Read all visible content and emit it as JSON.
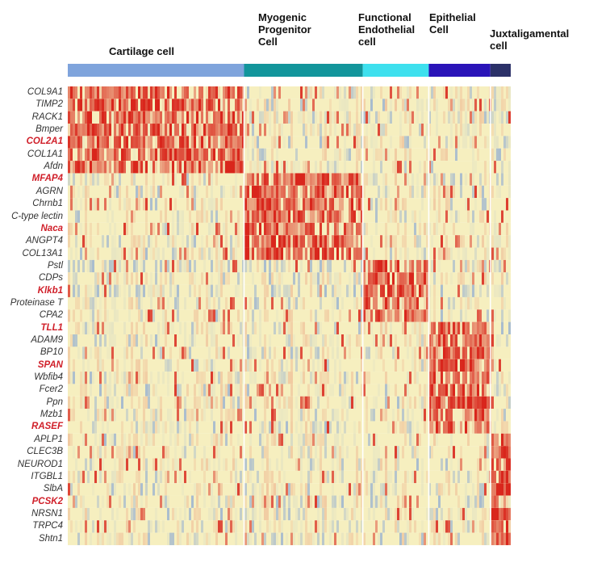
{
  "chart_data": {
    "type": "heatmap",
    "clusters": [
      {
        "name": "Cartilage cell",
        "label": "Cartilage cell",
        "color": "#7fa4dc",
        "share": 0.398
      },
      {
        "name": "Myogenic Progenitor Cell",
        "label": "Myogenic\nProgenitor\nCell",
        "color": "#12959b",
        "share": 0.268
      },
      {
        "name": "Functional Endothelial cell",
        "label": "Functional\nEndothelial\ncell",
        "color": "#3ee0ee",
        "share": 0.149
      },
      {
        "name": "Epithelial Cell",
        "label": "Epithelial\nCell",
        "color": "#2a14b8",
        "share": 0.139
      },
      {
        "name": "Juxtaligamental cell",
        "label": "Juxtaligamental\ncell",
        "color": "#2b3168",
        "share": 0.046
      }
    ],
    "genes": [
      {
        "name": "COL9A1",
        "highlight": false,
        "cluster": 0
      },
      {
        "name": "TIMP2",
        "highlight": false,
        "cluster": 0
      },
      {
        "name": "RACK1",
        "highlight": false,
        "cluster": 0
      },
      {
        "name": "Bmper",
        "highlight": false,
        "cluster": 0
      },
      {
        "name": "COL2A1",
        "highlight": true,
        "cluster": 0
      },
      {
        "name": "COL1A1",
        "highlight": false,
        "cluster": 0
      },
      {
        "name": "Afdn",
        "highlight": false,
        "cluster": 0
      },
      {
        "name": "MFAP4",
        "highlight": true,
        "cluster": 1
      },
      {
        "name": "AGRN",
        "highlight": false,
        "cluster": 1
      },
      {
        "name": "Chrnb1",
        "highlight": false,
        "cluster": 1
      },
      {
        "name": "C-type lectin",
        "highlight": false,
        "cluster": 1
      },
      {
        "name": "Naca",
        "highlight": true,
        "cluster": 1
      },
      {
        "name": "ANGPT4",
        "highlight": false,
        "cluster": 1
      },
      {
        "name": "COL13A1",
        "highlight": false,
        "cluster": 1
      },
      {
        "name": "Pstl",
        "highlight": false,
        "cluster": 2
      },
      {
        "name": "CDPs",
        "highlight": false,
        "cluster": 2
      },
      {
        "name": "Klkb1",
        "highlight": true,
        "cluster": 2
      },
      {
        "name": "Proteinase T",
        "highlight": false,
        "cluster": 2
      },
      {
        "name": "CPA2",
        "highlight": false,
        "cluster": 2
      },
      {
        "name": "TLL1",
        "highlight": true,
        "cluster": 3
      },
      {
        "name": "ADAM9",
        "highlight": false,
        "cluster": 3
      },
      {
        "name": "BP10",
        "highlight": false,
        "cluster": 3
      },
      {
        "name": "SPAN",
        "highlight": true,
        "cluster": 3
      },
      {
        "name": "Wbfib4",
        "highlight": false,
        "cluster": 3
      },
      {
        "name": "Fcer2",
        "highlight": false,
        "cluster": 3
      },
      {
        "name": "Ppn",
        "highlight": false,
        "cluster": 3
      },
      {
        "name": "Mzb1",
        "highlight": false,
        "cluster": 3
      },
      {
        "name": "RASEF",
        "highlight": true,
        "cluster": 3
      },
      {
        "name": "APLP1",
        "highlight": false,
        "cluster": 4
      },
      {
        "name": "CLEC3B",
        "highlight": false,
        "cluster": 4
      },
      {
        "name": "NEUROD1",
        "highlight": false,
        "cluster": 4
      },
      {
        "name": "ITGBL1",
        "highlight": false,
        "cluster": 4
      },
      {
        "name": "SlbA",
        "highlight": false,
        "cluster": 4
      },
      {
        "name": "PCSK2",
        "highlight": true,
        "cluster": 4
      },
      {
        "name": "NRSN1",
        "highlight": false,
        "cluster": 4
      },
      {
        "name": "TRPC4",
        "highlight": false,
        "cluster": 4
      },
      {
        "name": "Shtn1",
        "highlight": false,
        "cluster": 4
      }
    ],
    "colorscale": [
      "#9fb6d0",
      "#f6efbf",
      "#d9261c"
    ],
    "highlight_color": "#d0202a"
  }
}
